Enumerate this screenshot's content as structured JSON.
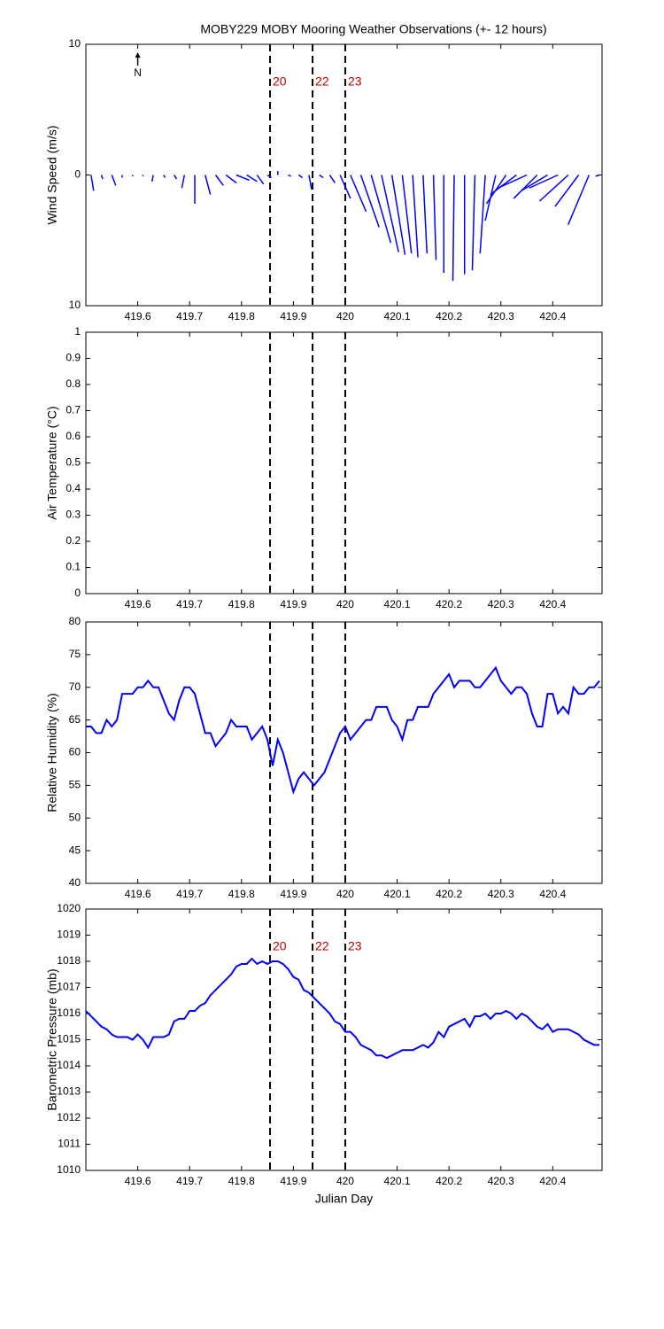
{
  "chart_data": [
    {
      "type": "quiver",
      "title": "MOBY229 MOBY Mooring Weather Observations (+- 12 hours)",
      "ylabel": "Wind Speed (m/s)",
      "north_label": "N",
      "color": "#0000ff",
      "xlim": [
        419.5,
        420.495
      ],
      "xticks": [
        419.6,
        419.7,
        419.8,
        419.9,
        420,
        420.1,
        420.2,
        420.3,
        420.4
      ],
      "ylim": [
        -10,
        10
      ],
      "yticks": [
        {
          "value": -10,
          "label": "10"
        },
        0,
        10
      ],
      "vlines": [
        419.855,
        419.937,
        420.0
      ],
      "vline_labels": [
        "20",
        "22",
        "23"
      ],
      "x": [
        419.51,
        419.53,
        419.55,
        419.57,
        419.59,
        419.61,
        419.63,
        419.65,
        419.67,
        419.69,
        419.71,
        419.73,
        419.75,
        419.77,
        419.79,
        419.81,
        419.83,
        419.85,
        419.87,
        419.89,
        419.91,
        419.93,
        419.95,
        419.97,
        419.99,
        420.01,
        420.03,
        420.05,
        420.07,
        420.09,
        420.11,
        420.13,
        420.15,
        420.17,
        420.19,
        420.21,
        420.23,
        420.25,
        420.27,
        420.29,
        420.31,
        420.33,
        420.35,
        420.37,
        420.39,
        420.41,
        420.43,
        420.45,
        420.47,
        420.49
      ],
      "u": [
        0.2,
        0.1,
        0.3,
        0,
        0,
        0,
        -0.1,
        0.1,
        0.2,
        -0.2,
        0,
        0.4,
        0.6,
        0.8,
        1.0,
        0.8,
        0.5,
        0.3,
        0,
        0.2,
        0.3,
        0.2,
        0.3,
        0.4,
        0.8,
        1.2,
        1.4,
        1.5,
        1.3,
        1.0,
        0.7,
        0.4,
        0.3,
        0.2,
        0,
        -0.1,
        0,
        -0.2,
        -0.4,
        -0.8,
        -1.5,
        -2.0,
        -2.2,
        -1.8,
        -2.0,
        -2.2,
        -2.2,
        -1.8,
        -1.6,
        -0.3
      ],
      "v": [
        -1.2,
        -0.3,
        -0.8,
        -0.2,
        -0.1,
        -0.1,
        -0.5,
        -0.2,
        -0.3,
        -1.0,
        -2.2,
        -1.5,
        -0.8,
        -0.6,
        -0.4,
        -0.5,
        -0.7,
        -0.2,
        0.3,
        -0.1,
        -0.2,
        -1.1,
        -0.2,
        -0.6,
        -1.8,
        -2.8,
        -4.0,
        -5.2,
        -5.9,
        -6.1,
        -6.0,
        -6.3,
        -6.0,
        -6.5,
        -7.5,
        -8.1,
        -7.6,
        -7.3,
        -6.0,
        -3.5,
        -2.2,
        -1.5,
        -1.0,
        -1.8,
        -1.2,
        -1.0,
        -2.0,
        -2.4,
        -3.8,
        -0.1
      ]
    },
    {
      "type": "line",
      "ylabel": "Air Temperature (°C)",
      "xlim": [
        419.5,
        420.495
      ],
      "xticks": [
        419.6,
        419.7,
        419.8,
        419.9,
        420,
        420.1,
        420.2,
        420.3,
        420.4
      ],
      "ylim": [
        0,
        1
      ],
      "yticks": [
        0,
        0.1,
        0.2,
        0.3,
        0.4,
        0.5,
        0.6,
        0.7,
        0.8,
        0.9,
        1
      ],
      "vlines": [
        419.855,
        419.937,
        420.0
      ],
      "x": [],
      "series": []
    },
    {
      "type": "line",
      "ylabel": "Relative Humidity (%)",
      "xlim": [
        419.5,
        420.495
      ],
      "xticks": [
        419.6,
        419.7,
        419.8,
        419.9,
        420,
        420.1,
        420.2,
        420.3,
        420.4
      ],
      "ylim": [
        40,
        80
      ],
      "yticks": [
        40,
        45,
        50,
        55,
        60,
        65,
        70,
        75,
        80
      ],
      "vlines": [
        419.855,
        419.937,
        420.0
      ],
      "x": [
        419.5,
        419.51,
        419.52,
        419.53,
        419.54,
        419.55,
        419.56,
        419.57,
        419.58,
        419.59,
        419.6,
        419.61,
        419.62,
        419.63,
        419.64,
        419.65,
        419.66,
        419.67,
        419.68,
        419.69,
        419.7,
        419.71,
        419.72,
        419.73,
        419.74,
        419.75,
        419.76,
        419.77,
        419.78,
        419.79,
        419.8,
        419.81,
        419.82,
        419.83,
        419.84,
        419.85,
        419.86,
        419.87,
        419.88,
        419.89,
        419.9,
        419.91,
        419.92,
        419.93,
        419.94,
        419.95,
        419.96,
        419.97,
        419.98,
        419.99,
        420.0,
        420.01,
        420.02,
        420.03,
        420.04,
        420.05,
        420.06,
        420.07,
        420.08,
        420.09,
        420.1,
        420.11,
        420.12,
        420.13,
        420.14,
        420.15,
        420.16,
        420.17,
        420.18,
        420.19,
        420.2,
        420.21,
        420.22,
        420.23,
        420.24,
        420.25,
        420.26,
        420.27,
        420.28,
        420.29,
        420.3,
        420.31,
        420.32,
        420.33,
        420.34,
        420.35,
        420.36,
        420.37,
        420.38,
        420.39,
        420.4,
        420.41,
        420.42,
        420.43,
        420.44,
        420.45,
        420.46,
        420.47,
        420.48,
        420.49
      ],
      "series": [
        {
          "color": "#0000ff",
          "values": [
            64,
            64,
            63,
            63,
            65,
            64,
            65,
            69,
            69,
            69,
            70,
            70,
            71,
            70,
            70,
            68,
            66,
            65,
            68,
            70,
            70,
            69,
            66,
            63,
            63,
            61,
            62,
            63,
            65,
            64,
            64,
            64,
            62,
            63,
            64,
            62,
            58,
            62,
            60,
            57,
            54,
            56,
            57,
            56,
            55,
            56,
            57,
            59,
            61,
            63,
            64,
            62,
            63,
            64,
            65,
            65,
            67,
            67,
            67,
            65,
            64,
            62,
            65,
            65,
            67,
            67,
            67,
            69,
            70,
            71,
            72,
            70,
            71,
            71,
            71,
            70,
            70,
            71,
            72,
            73,
            71,
            70,
            69,
            70,
            70,
            69,
            66,
            64,
            64,
            69,
            69,
            66,
            67,
            66,
            70,
            69,
            69,
            70,
            70,
            71
          ]
        }
      ]
    },
    {
      "type": "line",
      "ylabel": "Barometric Pressure (mb)",
      "xlabel": "Julian Day",
      "xlim": [
        419.5,
        420.495
      ],
      "xticks": [
        419.6,
        419.7,
        419.8,
        419.9,
        420,
        420.1,
        420.2,
        420.3,
        420.4
      ],
      "ylim": [
        1010,
        1020
      ],
      "yticks": [
        1010,
        1011,
        1012,
        1013,
        1014,
        1015,
        1016,
        1017,
        1018,
        1019,
        1020
      ],
      "vlines": [
        419.855,
        419.937,
        420.0
      ],
      "vline_labels": [
        "20",
        "22",
        "23"
      ],
      "x": [
        419.5,
        419.51,
        419.52,
        419.53,
        419.54,
        419.55,
        419.56,
        419.57,
        419.58,
        419.59,
        419.6,
        419.61,
        419.62,
        419.63,
        419.64,
        419.65,
        419.66,
        419.67,
        419.68,
        419.69,
        419.7,
        419.71,
        419.72,
        419.73,
        419.74,
        419.75,
        419.76,
        419.77,
        419.78,
        419.79,
        419.8,
        419.81,
        419.82,
        419.83,
        419.84,
        419.85,
        419.86,
        419.87,
        419.88,
        419.89,
        419.9,
        419.91,
        419.92,
        419.93,
        419.94,
        419.95,
        419.96,
        419.97,
        419.98,
        419.99,
        420.0,
        420.01,
        420.02,
        420.03,
        420.04,
        420.05,
        420.06,
        420.07,
        420.08,
        420.09,
        420.1,
        420.11,
        420.12,
        420.13,
        420.14,
        420.15,
        420.16,
        420.17,
        420.18,
        420.19,
        420.2,
        420.21,
        420.22,
        420.23,
        420.24,
        420.25,
        420.26,
        420.27,
        420.28,
        420.29,
        420.3,
        420.31,
        420.32,
        420.33,
        420.34,
        420.35,
        420.36,
        420.37,
        420.38,
        420.39,
        420.4,
        420.41,
        420.42,
        420.43,
        420.44,
        420.45,
        420.46,
        420.47,
        420.48,
        420.49
      ],
      "series": [
        {
          "color": "#0000ff",
          "values": [
            1016.1,
            1015.9,
            1015.7,
            1015.5,
            1015.4,
            1015.2,
            1015.1,
            1015.1,
            1015.1,
            1015.0,
            1015.2,
            1015.0,
            1014.7,
            1015.1,
            1015.1,
            1015.1,
            1015.2,
            1015.7,
            1015.8,
            1015.8,
            1016.1,
            1016.1,
            1016.3,
            1016.4,
            1016.7,
            1016.9,
            1017.1,
            1017.3,
            1017.5,
            1017.8,
            1017.9,
            1017.9,
            1018.1,
            1017.9,
            1018.0,
            1017.9,
            1018.0,
            1018.0,
            1017.9,
            1017.7,
            1017.4,
            1017.3,
            1016.9,
            1016.8,
            1016.6,
            1016.4,
            1016.2,
            1016.0,
            1015.7,
            1015.6,
            1015.3,
            1015.3,
            1015.1,
            1014.8,
            1014.7,
            1014.6,
            1014.4,
            1014.4,
            1014.3,
            1014.4,
            1014.5,
            1014.6,
            1014.6,
            1014.6,
            1014.7,
            1014.8,
            1014.7,
            1014.9,
            1015.3,
            1015.1,
            1015.5,
            1015.6,
            1015.7,
            1015.8,
            1015.5,
            1015.9,
            1015.9,
            1016.0,
            1015.8,
            1016.0,
            1016.0,
            1016.1,
            1016.0,
            1015.8,
            1016.0,
            1015.9,
            1015.7,
            1015.5,
            1015.4,
            1015.6,
            1015.3,
            1015.4,
            1015.4,
            1015.4,
            1015.3,
            1015.2,
            1015.0,
            1014.9,
            1014.8,
            1014.8
          ]
        }
      ]
    }
  ]
}
